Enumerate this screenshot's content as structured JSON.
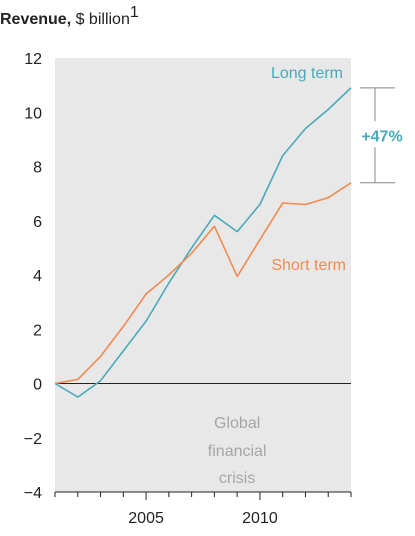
{
  "chart_data": {
    "type": "line",
    "title_bold": "Revenue,",
    "title_rest": " $ billion",
    "title_footnote": "1",
    "x": [
      2001,
      2002,
      2003,
      2004,
      2005,
      2006,
      2007,
      2008,
      2009,
      2010,
      2011,
      2012,
      2013,
      2014
    ],
    "x_ticks": [
      2005,
      2010
    ],
    "x_tick_labels": [
      "2005",
      "2010"
    ],
    "xlim": [
      2001,
      2014
    ],
    "ylim": [
      -4,
      12
    ],
    "y_ticks": [
      -4,
      -2,
      0,
      2,
      4,
      6,
      8,
      10,
      12
    ],
    "y_tick_labels": [
      "−4",
      "−2",
      "0",
      "2",
      "4",
      "6",
      "8",
      "10",
      "12"
    ],
    "grid": false,
    "series": [
      {
        "name": "Long term",
        "color": "#4aa9b9",
        "values": [
          0.0,
          -0.5,
          0.1,
          1.2,
          2.3,
          3.7,
          5.0,
          6.2,
          5.6,
          6.6,
          8.4,
          9.4,
          10.1,
          10.9
        ]
      },
      {
        "name": "Short term",
        "color": "#f28b4f",
        "values": [
          0.0,
          0.15,
          1.0,
          2.1,
          3.3,
          4.0,
          4.8,
          5.8,
          3.95,
          5.3,
          6.65,
          6.6,
          6.85,
          7.4
        ]
      }
    ],
    "annotations": {
      "crisis_lines": [
        "Global",
        "financial",
        "crisis"
      ],
      "callout": "+47%",
      "callout_color": "#4aa9b9"
    },
    "colors": {
      "plot_background": "#e8e8e8",
      "zero_line": "#222222",
      "bracket": "#888888"
    }
  }
}
